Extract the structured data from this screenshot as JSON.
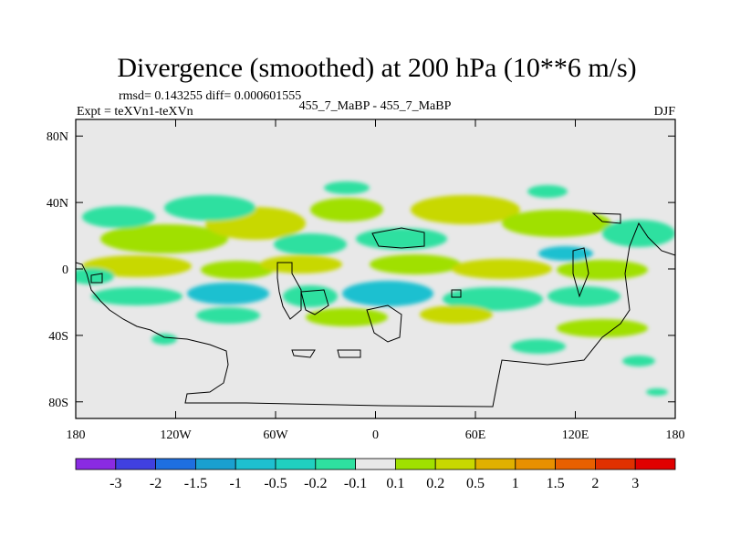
{
  "chart_data": {
    "type": "heatmap",
    "title": "Divergence (smoothed) at 200 hPa (10**6 m/s)",
    "stats_text": "rmsd= 0.143255 diff= 0.000601555",
    "left_label": "Expt = teXVn1-teXVn",
    "center_label": "455_7_MaBP - 455_7_MaBP",
    "right_label": "DJF",
    "x_axis": {
      "range": [
        -180,
        180
      ],
      "ticks": [
        -180,
        -120,
        -60,
        0,
        60,
        120,
        180
      ],
      "tick_labels": [
        "180",
        "120W",
        "60W",
        "0",
        "60E",
        "120E",
        "180"
      ]
    },
    "y_axis": {
      "range": [
        -90,
        90
      ],
      "ticks": [
        80,
        40,
        0,
        -40,
        -80
      ],
      "tick_labels": [
        "80N",
        "40N",
        "0",
        "40S",
        "80S"
      ]
    },
    "colorbar": {
      "bounds": [
        -3,
        -2,
        -1.5,
        -1,
        -0.5,
        -0.2,
        -0.1,
        0.1,
        0.2,
        0.5,
        1,
        1.5,
        2,
        3
      ],
      "labels": [
        "-3",
        "-2",
        "-1.5",
        "-1",
        "-0.5",
        "-0.2",
        "-0.1",
        "0.1",
        "0.2",
        "0.5",
        "1",
        "1.5",
        "2",
        "3"
      ],
      "colors": [
        "#8a2be2",
        "#4040e0",
        "#1e6fe0",
        "#1aa0d0",
        "#1ec0d0",
        "#20d0c0",
        "#2ee0a0",
        "#e8e8e8",
        "#a0e000",
        "#c8d800",
        "#e0b000",
        "#e89000",
        "#e86000",
        "#e03000",
        "#e00000"
      ]
    },
    "features": [
      {
        "name": "positive-blob",
        "lon": -115,
        "lat": 27,
        "value": 0.5
      },
      {
        "name": "positive-blob",
        "lon": -70,
        "lat": 22,
        "value": 0.3
      },
      {
        "name": "positive-blob",
        "lon": 55,
        "lat": 28,
        "value": 0.4
      },
      {
        "name": "positive-blob",
        "lon": 130,
        "lat": 25,
        "value": 0.5
      },
      {
        "name": "positive-blob",
        "lon": -140,
        "lat": 5,
        "value": 0.6
      },
      {
        "name": "positive-blob",
        "lon": -50,
        "lat": 3,
        "value": 0.4
      },
      {
        "name": "positive-blob",
        "lon": 75,
        "lat": 5,
        "value": 0.5
      },
      {
        "name": "positive-blob",
        "lon": -20,
        "lat": -28,
        "value": 0.3
      },
      {
        "name": "positive-blob",
        "lon": 130,
        "lat": -38,
        "value": 0.4
      },
      {
        "name": "negative-blob",
        "lon": -95,
        "lat": 32,
        "value": -0.5
      },
      {
        "name": "negative-blob",
        "lon": -150,
        "lat": 38,
        "value": -0.3
      },
      {
        "name": "negative-blob",
        "lon": 10,
        "lat": 20,
        "value": -0.4
      },
      {
        "name": "negative-blob",
        "lon": 115,
        "lat": 8,
        "value": -0.4
      },
      {
        "name": "negative-blob",
        "lon": -40,
        "lat": -15,
        "value": -0.5
      },
      {
        "name": "negative-blob",
        "lon": 35,
        "lat": -15,
        "value": -0.4
      },
      {
        "name": "negative-blob",
        "lon": -120,
        "lat": -20,
        "value": -0.3
      },
      {
        "name": "negative-blob",
        "lon": 90,
        "lat": -22,
        "value": -0.3
      },
      {
        "name": "negative-blob",
        "lon": 150,
        "lat": -30,
        "value": -0.3
      }
    ]
  }
}
